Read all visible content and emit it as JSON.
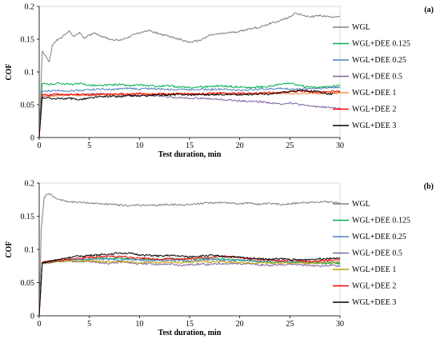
{
  "chart_data": [
    {
      "type": "line",
      "panel_label": "(a)",
      "xlabel": "Test duration, min",
      "ylabel": "COF",
      "xlim": [
        0,
        30
      ],
      "ylim": [
        0,
        0.2
      ],
      "xticks": [
        "0",
        "5",
        "10",
        "15",
        "20",
        "25",
        "30"
      ],
      "yticks": [
        "0",
        "0.05",
        "0.1",
        "0.15",
        "0.2"
      ],
      "grid": false,
      "legend": "right",
      "series": [
        {
          "name": "WGL",
          "color": "#808080",
          "x": [
            0,
            0.3,
            0.6,
            1,
            1.3,
            1.7,
            2,
            2.5,
            3,
            3.5,
            4,
            4.5,
            5,
            5.5,
            6,
            7,
            8,
            9,
            10,
            11,
            12,
            13,
            14,
            15,
            16,
            17,
            18,
            19,
            20,
            21,
            22,
            23,
            24,
            25,
            25.5,
            26,
            27,
            28,
            29,
            30
          ],
          "values": [
            0,
            0.132,
            0.126,
            0.115,
            0.14,
            0.148,
            0.15,
            0.156,
            0.162,
            0.154,
            0.16,
            0.152,
            0.156,
            0.16,
            0.156,
            0.15,
            0.148,
            0.154,
            0.16,
            0.163,
            0.158,
            0.154,
            0.15,
            0.145,
            0.148,
            0.156,
            0.158,
            0.16,
            0.162,
            0.166,
            0.168,
            0.174,
            0.178,
            0.184,
            0.19,
            0.188,
            0.184,
            0.186,
            0.184,
            0.185
          ]
        },
        {
          "name": "WGL+DEE 0.125",
          "color": "#00b050",
          "x": [
            0,
            0.3,
            1,
            2,
            3,
            4,
            5,
            6,
            7,
            8,
            9,
            10,
            11,
            12,
            13,
            14,
            15,
            16,
            17,
            18,
            19,
            20,
            21,
            22,
            23,
            24,
            25,
            26,
            27,
            28,
            29,
            30
          ],
          "values": [
            0,
            0.082,
            0.081,
            0.083,
            0.081,
            0.082,
            0.08,
            0.079,
            0.08,
            0.081,
            0.079,
            0.08,
            0.079,
            0.078,
            0.079,
            0.077,
            0.076,
            0.077,
            0.078,
            0.079,
            0.078,
            0.077,
            0.076,
            0.077,
            0.078,
            0.081,
            0.083,
            0.079,
            0.077,
            0.076,
            0.078,
            0.08
          ]
        },
        {
          "name": "WGL+DEE 0.25",
          "color": "#4f81bd",
          "x": [
            0,
            0.3,
            1,
            2,
            3,
            4,
            5,
            6,
            7,
            8,
            9,
            10,
            11,
            12,
            13,
            14,
            15,
            16,
            17,
            18,
            19,
            20,
            21,
            22,
            23,
            24,
            25,
            26,
            27,
            28,
            29,
            30
          ],
          "values": [
            0,
            0.07,
            0.071,
            0.072,
            0.071,
            0.072,
            0.073,
            0.074,
            0.073,
            0.074,
            0.075,
            0.074,
            0.075,
            0.074,
            0.073,
            0.074,
            0.073,
            0.074,
            0.073,
            0.074,
            0.073,
            0.072,
            0.073,
            0.074,
            0.074,
            0.075,
            0.074,
            0.074,
            0.075,
            0.075,
            0.076,
            0.077
          ]
        },
        {
          "name": "WGL+DEE 0.5",
          "color": "#8064a2",
          "x": [
            0,
            0.3,
            1,
            2,
            3,
            4,
            5,
            6,
            7,
            8,
            9,
            10,
            11,
            12,
            13,
            14,
            15,
            16,
            17,
            18,
            19,
            20,
            21,
            22,
            23,
            24,
            25,
            26,
            27,
            28,
            29,
            30
          ],
          "values": [
            0,
            0.063,
            0.064,
            0.065,
            0.066,
            0.065,
            0.066,
            0.067,
            0.066,
            0.065,
            0.065,
            0.064,
            0.064,
            0.063,
            0.062,
            0.061,
            0.06,
            0.06,
            0.059,
            0.058,
            0.057,
            0.056,
            0.055,
            0.055,
            0.053,
            0.051,
            0.053,
            0.05,
            0.048,
            0.047,
            0.046,
            0.044
          ]
        },
        {
          "name": "WGL+DEE 1",
          "color": "#f79646",
          "x": [
            0,
            0.3,
            1,
            2,
            3,
            4,
            5,
            6,
            7,
            8,
            9,
            10,
            11,
            12,
            13,
            14,
            15,
            16,
            17,
            18,
            19,
            20,
            21,
            22,
            23,
            24,
            25,
            26,
            27,
            28,
            29,
            30
          ],
          "values": [
            0,
            0.064,
            0.063,
            0.064,
            0.065,
            0.064,
            0.065,
            0.066,
            0.065,
            0.066,
            0.066,
            0.067,
            0.066,
            0.067,
            0.066,
            0.067,
            0.066,
            0.067,
            0.066,
            0.067,
            0.066,
            0.067,
            0.067,
            0.066,
            0.067,
            0.068,
            0.067,
            0.067,
            0.068,
            0.067,
            0.068,
            0.068
          ]
        },
        {
          "name": "WGL+DEE 2",
          "color": "#ff0000",
          "x": [
            0,
            0.3,
            1,
            2,
            3,
            4,
            5,
            6,
            7,
            8,
            9,
            10,
            11,
            12,
            13,
            14,
            15,
            16,
            17,
            18,
            19,
            20,
            21,
            22,
            23,
            24,
            25,
            26,
            27,
            28,
            29,
            30
          ],
          "values": [
            0,
            0.066,
            0.065,
            0.066,
            0.065,
            0.066,
            0.065,
            0.066,
            0.066,
            0.067,
            0.066,
            0.067,
            0.066,
            0.067,
            0.066,
            0.067,
            0.067,
            0.066,
            0.067,
            0.068,
            0.067,
            0.068,
            0.067,
            0.068,
            0.069,
            0.068,
            0.07,
            0.071,
            0.07,
            0.069,
            0.07,
            0.071
          ]
        },
        {
          "name": "WGL+DEE 3",
          "color": "#000000",
          "x": [
            0,
            0.3,
            1,
            2,
            3,
            4,
            5,
            6,
            7,
            8,
            9,
            10,
            11,
            12,
            13,
            14,
            15,
            16,
            17,
            18,
            19,
            20,
            21,
            22,
            23,
            24,
            25,
            26,
            27,
            28,
            29,
            30
          ],
          "values": [
            0,
            0.061,
            0.06,
            0.059,
            0.06,
            0.058,
            0.06,
            0.062,
            0.063,
            0.062,
            0.064,
            0.063,
            0.064,
            0.065,
            0.065,
            0.066,
            0.065,
            0.066,
            0.065,
            0.066,
            0.066,
            0.065,
            0.066,
            0.067,
            0.066,
            0.068,
            0.07,
            0.072,
            0.071,
            0.07,
            0.066,
            0.07
          ]
        }
      ]
    },
    {
      "type": "line",
      "panel_label": "(b)",
      "xlabel": "Test duration, min",
      "ylabel": "COF",
      "xlim": [
        0,
        30
      ],
      "ylim": [
        0,
        0.2
      ],
      "xticks": [
        "0",
        "5",
        "10",
        "15",
        "20",
        "25",
        "30"
      ],
      "yticks": [
        "0",
        "0.05",
        "0.1",
        "0.15",
        "0.2"
      ],
      "grid": false,
      "legend": "right",
      "series": [
        {
          "name": "WGL",
          "color": "#808080",
          "x": [
            0,
            0.2,
            0.5,
            0.8,
            1.2,
            1.6,
            2,
            3,
            4,
            5,
            6,
            7,
            8,
            9,
            10,
            11,
            12,
            13,
            14,
            15,
            16,
            17,
            18,
            19,
            20,
            21,
            22,
            23,
            24,
            25,
            26,
            27,
            28,
            29,
            30
          ],
          "values": [
            0,
            0.13,
            0.178,
            0.184,
            0.182,
            0.178,
            0.175,
            0.172,
            0.171,
            0.17,
            0.169,
            0.168,
            0.167,
            0.166,
            0.167,
            0.166,
            0.167,
            0.168,
            0.167,
            0.168,
            0.169,
            0.17,
            0.171,
            0.17,
            0.169,
            0.17,
            0.168,
            0.169,
            0.168,
            0.169,
            0.17,
            0.171,
            0.172,
            0.172,
            0.17
          ]
        },
        {
          "name": "WGL+DEE 0.125",
          "color": "#00b050",
          "x": [
            0,
            0.3,
            1,
            2,
            3,
            4,
            5,
            6,
            7,
            8,
            9,
            10,
            11,
            12,
            13,
            14,
            15,
            16,
            17,
            18,
            19,
            20,
            21,
            22,
            23,
            24,
            25,
            26,
            27,
            28,
            29,
            30
          ],
          "values": [
            0,
            0.079,
            0.081,
            0.082,
            0.084,
            0.085,
            0.086,
            0.087,
            0.086,
            0.087,
            0.086,
            0.085,
            0.086,
            0.085,
            0.086,
            0.085,
            0.086,
            0.086,
            0.087,
            0.086,
            0.085,
            0.084,
            0.083,
            0.082,
            0.081,
            0.081,
            0.082,
            0.081,
            0.08,
            0.08,
            0.079,
            0.079
          ]
        },
        {
          "name": "WGL+DEE 0.25",
          "color": "#4f81bd",
          "x": [
            0,
            0.3,
            1,
            2,
            3,
            4,
            5,
            6,
            7,
            8,
            9,
            10,
            11,
            12,
            13,
            14,
            15,
            16,
            17,
            18,
            19,
            20,
            21,
            22,
            23,
            24,
            25,
            26,
            27,
            28,
            29,
            30
          ],
          "values": [
            0,
            0.08,
            0.082,
            0.083,
            0.084,
            0.085,
            0.085,
            0.086,
            0.085,
            0.084,
            0.085,
            0.084,
            0.083,
            0.084,
            0.083,
            0.084,
            0.083,
            0.084,
            0.085,
            0.084,
            0.083,
            0.084,
            0.083,
            0.082,
            0.083,
            0.082,
            0.081,
            0.082,
            0.081,
            0.08,
            0.081,
            0.08
          ]
        },
        {
          "name": "WGL+DEE 0.5",
          "color": "#8064a2",
          "x": [
            0,
            0.3,
            1,
            2,
            3,
            4,
            5,
            6,
            7,
            8,
            9,
            10,
            11,
            12,
            13,
            14,
            15,
            16,
            17,
            18,
            19,
            20,
            21,
            22,
            23,
            24,
            25,
            26,
            27,
            28,
            29,
            30
          ],
          "values": [
            0,
            0.079,
            0.08,
            0.082,
            0.083,
            0.081,
            0.082,
            0.08,
            0.079,
            0.081,
            0.08,
            0.078,
            0.079,
            0.077,
            0.078,
            0.076,
            0.077,
            0.078,
            0.077,
            0.079,
            0.078,
            0.079,
            0.078,
            0.077,
            0.076,
            0.077,
            0.078,
            0.077,
            0.076,
            0.075,
            0.076,
            0.075
          ]
        },
        {
          "name": "WGL+DEE 1",
          "color": "#c0a000",
          "x": [
            0,
            0.3,
            1,
            2,
            3,
            4,
            5,
            6,
            7,
            8,
            9,
            10,
            11,
            12,
            13,
            14,
            15,
            16,
            17,
            18,
            19,
            20,
            21,
            22,
            23,
            24,
            25,
            26,
            27,
            28,
            29,
            30
          ],
          "values": [
            0,
            0.08,
            0.081,
            0.082,
            0.083,
            0.082,
            0.083,
            0.082,
            0.081,
            0.082,
            0.081,
            0.08,
            0.081,
            0.08,
            0.081,
            0.08,
            0.081,
            0.082,
            0.081,
            0.082,
            0.081,
            0.08,
            0.079,
            0.08,
            0.079,
            0.08,
            0.079,
            0.08,
            0.079,
            0.08,
            0.081,
            0.08
          ]
        },
        {
          "name": "WGL+DEE 2",
          "color": "#ff0000",
          "x": [
            0,
            0.3,
            1,
            2,
            3,
            4,
            5,
            6,
            7,
            8,
            9,
            10,
            11,
            12,
            13,
            14,
            15,
            16,
            17,
            18,
            19,
            20,
            21,
            22,
            23,
            24,
            25,
            26,
            27,
            28,
            29,
            30
          ],
          "values": [
            0,
            0.081,
            0.082,
            0.084,
            0.086,
            0.087,
            0.088,
            0.089,
            0.09,
            0.089,
            0.088,
            0.087,
            0.086,
            0.085,
            0.086,
            0.085,
            0.086,
            0.087,
            0.088,
            0.09,
            0.089,
            0.088,
            0.086,
            0.085,
            0.084,
            0.083,
            0.084,
            0.083,
            0.082,
            0.083,
            0.084,
            0.085
          ]
        },
        {
          "name": "WGL+DEE 3",
          "color": "#000000",
          "x": [
            0,
            0.3,
            1,
            2,
            3,
            4,
            5,
            6,
            7,
            8,
            9,
            10,
            11,
            12,
            13,
            14,
            15,
            16,
            17,
            18,
            19,
            20,
            21,
            22,
            23,
            24,
            25,
            26,
            27,
            28,
            29,
            30
          ],
          "values": [
            0,
            0.08,
            0.082,
            0.085,
            0.088,
            0.09,
            0.091,
            0.092,
            0.093,
            0.095,
            0.094,
            0.092,
            0.091,
            0.09,
            0.091,
            0.09,
            0.089,
            0.09,
            0.091,
            0.09,
            0.089,
            0.088,
            0.087,
            0.086,
            0.085,
            0.086,
            0.085,
            0.084,
            0.085,
            0.086,
            0.087,
            0.086
          ]
        }
      ]
    }
  ]
}
